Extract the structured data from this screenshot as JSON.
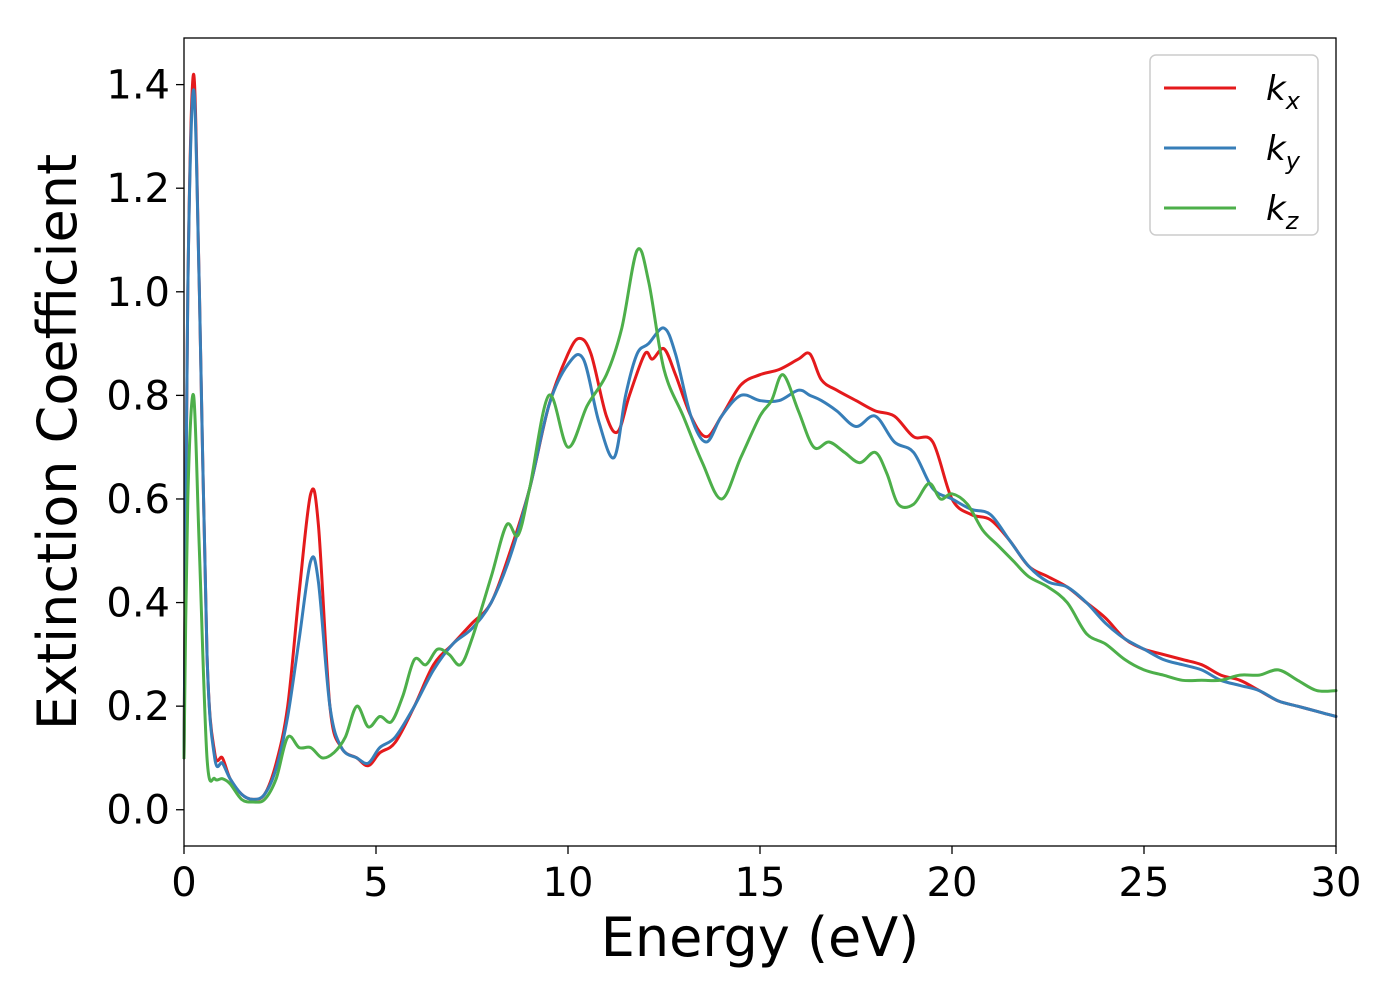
{
  "chart_data": {
    "type": "line",
    "xlabel": "Energy (eV)",
    "ylabel": "Extinction Coefficient",
    "xlim": [
      0,
      30
    ],
    "ylim": [
      -0.07,
      1.49
    ],
    "xticks": [
      0,
      5,
      10,
      15,
      20,
      25,
      30
    ],
    "yticks": [
      0.0,
      0.2,
      0.4,
      0.6,
      0.8,
      1.0,
      1.2,
      1.4
    ],
    "grid": false,
    "legend_position": "top-right",
    "series": [
      {
        "label_base": "k",
        "label_sub": "x",
        "color": "#e41a1c",
        "x": [
          0,
          0.1,
          0.25,
          0.4,
          0.6,
          0.8,
          1.0,
          1.2,
          1.5,
          1.8,
          2.1,
          2.4,
          2.7,
          3.0,
          3.3,
          3.5,
          3.8,
          4.1,
          4.5,
          4.8,
          5.1,
          5.5,
          6.0,
          6.5,
          7.0,
          7.5,
          8.0,
          8.5,
          9.0,
          9.5,
          10.0,
          10.3,
          10.6,
          11.0,
          11.3,
          11.6,
          12.0,
          12.2,
          12.5,
          12.8,
          13.2,
          13.6,
          14.0,
          14.5,
          15.0,
          15.5,
          16.0,
          16.3,
          16.6,
          17.0,
          17.5,
          18.0,
          18.5,
          19.0,
          19.5,
          20.0,
          20.5,
          21.0,
          21.5,
          22.0,
          22.5,
          23.0,
          23.5,
          24.0,
          24.5,
          25.0,
          25.5,
          26.0,
          26.5,
          27.0,
          27.5,
          28.0,
          28.5,
          29.0,
          29.5,
          30.0
        ],
        "y": [
          0.1,
          1.0,
          1.42,
          1.0,
          0.3,
          0.11,
          0.1,
          0.06,
          0.03,
          0.02,
          0.03,
          0.09,
          0.2,
          0.42,
          0.61,
          0.55,
          0.2,
          0.12,
          0.1,
          0.085,
          0.11,
          0.13,
          0.2,
          0.28,
          0.32,
          0.36,
          0.4,
          0.5,
          0.62,
          0.78,
          0.88,
          0.91,
          0.88,
          0.76,
          0.73,
          0.8,
          0.88,
          0.87,
          0.89,
          0.84,
          0.76,
          0.72,
          0.76,
          0.82,
          0.84,
          0.85,
          0.87,
          0.88,
          0.83,
          0.81,
          0.79,
          0.77,
          0.76,
          0.72,
          0.71,
          0.6,
          0.57,
          0.56,
          0.52,
          0.47,
          0.45,
          0.43,
          0.4,
          0.37,
          0.33,
          0.31,
          0.3,
          0.29,
          0.28,
          0.26,
          0.25,
          0.23,
          0.21,
          0.2,
          0.19,
          0.18
        ]
      },
      {
        "label_base": "k",
        "label_sub": "y",
        "color": "#377eb8",
        "x": [
          0,
          0.1,
          0.25,
          0.4,
          0.6,
          0.8,
          1.0,
          1.2,
          1.5,
          1.8,
          2.1,
          2.4,
          2.7,
          3.0,
          3.3,
          3.5,
          3.8,
          4.1,
          4.5,
          4.8,
          5.1,
          5.5,
          6.0,
          6.5,
          7.0,
          7.5,
          8.0,
          8.5,
          9.0,
          9.5,
          10.0,
          10.4,
          10.8,
          11.2,
          11.5,
          11.8,
          12.1,
          12.5,
          12.8,
          13.2,
          13.6,
          14.0,
          14.5,
          15.0,
          15.5,
          16.0,
          16.3,
          16.6,
          17.0,
          17.5,
          18.0,
          18.5,
          19.0,
          19.5,
          20.0,
          20.5,
          21.0,
          21.5,
          22.0,
          22.5,
          23.0,
          23.5,
          24.0,
          24.5,
          25.0,
          25.5,
          26.0,
          26.5,
          27.0,
          27.5,
          28.0,
          28.5,
          29.0,
          29.5,
          30.0
        ],
        "y": [
          0.1,
          1.0,
          1.39,
          1.0,
          0.3,
          0.1,
          0.09,
          0.06,
          0.03,
          0.02,
          0.03,
          0.08,
          0.18,
          0.33,
          0.48,
          0.44,
          0.2,
          0.12,
          0.1,
          0.09,
          0.12,
          0.14,
          0.2,
          0.27,
          0.32,
          0.35,
          0.4,
          0.49,
          0.62,
          0.78,
          0.86,
          0.87,
          0.75,
          0.68,
          0.8,
          0.88,
          0.9,
          0.93,
          0.88,
          0.76,
          0.71,
          0.76,
          0.8,
          0.79,
          0.79,
          0.81,
          0.8,
          0.79,
          0.77,
          0.74,
          0.76,
          0.71,
          0.69,
          0.62,
          0.6,
          0.58,
          0.57,
          0.52,
          0.47,
          0.44,
          0.43,
          0.4,
          0.36,
          0.33,
          0.31,
          0.29,
          0.28,
          0.27,
          0.25,
          0.24,
          0.23,
          0.21,
          0.2,
          0.19,
          0.18
        ]
      },
      {
        "label_base": "k",
        "label_sub": "z",
        "color": "#4daf4a",
        "x": [
          0,
          0.1,
          0.25,
          0.4,
          0.6,
          0.8,
          1.0,
          1.2,
          1.5,
          1.8,
          2.1,
          2.4,
          2.7,
          3.0,
          3.3,
          3.6,
          3.9,
          4.2,
          4.5,
          4.8,
          5.1,
          5.4,
          5.7,
          6.0,
          6.3,
          6.6,
          6.9,
          7.2,
          7.5,
          8.0,
          8.4,
          8.7,
          9.0,
          9.5,
          10.0,
          10.5,
          11.0,
          11.4,
          11.8,
          12.1,
          12.5,
          13.0,
          13.5,
          14.0,
          14.5,
          15.0,
          15.3,
          15.6,
          16.0,
          16.4,
          16.8,
          17.2,
          17.6,
          18.0,
          18.3,
          18.6,
          19.0,
          19.4,
          19.7,
          20.0,
          20.4,
          20.8,
          21.2,
          21.6,
          22.0,
          22.5,
          23.0,
          23.5,
          24.0,
          24.5,
          25.0,
          25.5,
          26.0,
          26.5,
          27.0,
          27.5,
          28.0,
          28.5,
          29.0,
          29.5,
          30.0
        ],
        "y": [
          0.1,
          0.6,
          0.8,
          0.5,
          0.1,
          0.06,
          0.06,
          0.05,
          0.02,
          0.015,
          0.02,
          0.06,
          0.14,
          0.12,
          0.12,
          0.1,
          0.11,
          0.14,
          0.2,
          0.16,
          0.18,
          0.17,
          0.22,
          0.29,
          0.28,
          0.31,
          0.3,
          0.28,
          0.33,
          0.45,
          0.55,
          0.53,
          0.62,
          0.8,
          0.7,
          0.78,
          0.84,
          0.93,
          1.08,
          1.02,
          0.85,
          0.76,
          0.67,
          0.6,
          0.68,
          0.76,
          0.79,
          0.84,
          0.77,
          0.7,
          0.71,
          0.69,
          0.67,
          0.69,
          0.65,
          0.59,
          0.59,
          0.63,
          0.6,
          0.61,
          0.59,
          0.54,
          0.51,
          0.48,
          0.45,
          0.43,
          0.4,
          0.34,
          0.32,
          0.29,
          0.27,
          0.26,
          0.25,
          0.25,
          0.25,
          0.26,
          0.26,
          0.27,
          0.25,
          0.23,
          0.23
        ]
      }
    ]
  }
}
